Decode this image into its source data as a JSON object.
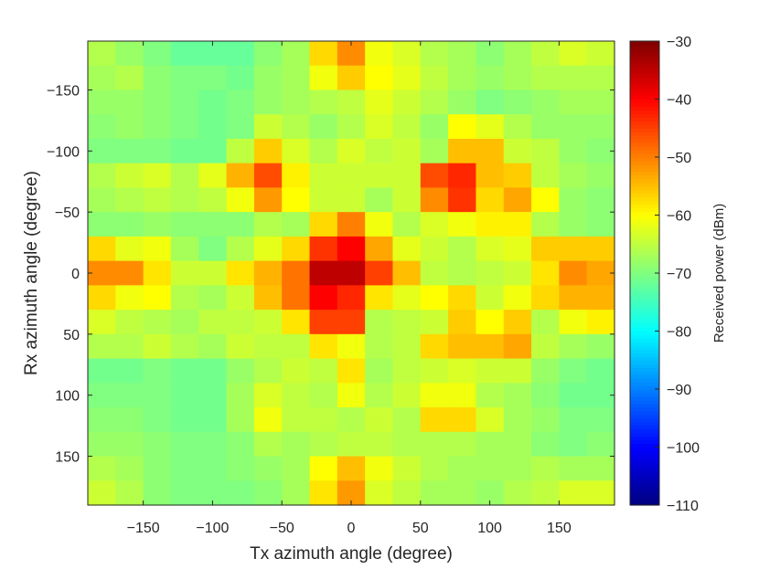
{
  "chart_data": {
    "type": "heatmap",
    "xlabel": "Tx azimuth angle (degree)",
    "ylabel": "Rx azimuth angle (degree)",
    "colorbar_label": "Received power (dBm)",
    "colormap": "jet",
    "clim": [
      -110,
      -30
    ],
    "xlim": [
      -190,
      190
    ],
    "ylim": [
      -190,
      190
    ],
    "y_direction": "reversed",
    "cell_size_deg": 20,
    "x_centers": [
      -180,
      -160,
      -140,
      -120,
      -100,
      -80,
      -60,
      -40,
      -20,
      0,
      20,
      40,
      60,
      80,
      100,
      120,
      140,
      160,
      180
    ],
    "y_centers": [
      -180,
      -160,
      -140,
      -120,
      -100,
      -80,
      -60,
      -40,
      -20,
      0,
      20,
      40,
      60,
      80,
      100,
      120,
      140,
      160,
      180
    ],
    "xticks": [
      -150,
      -100,
      -50,
      0,
      50,
      100,
      150
    ],
    "yticks": [
      -150,
      -100,
      -50,
      0,
      50,
      100,
      150
    ],
    "colorbar_ticks": [
      -30,
      -40,
      -50,
      -60,
      -70,
      -80,
      -90,
      -100,
      -110
    ],
    "values": [
      [
        -66,
        -68,
        -70,
        -72,
        -72,
        -72,
        -69,
        -67,
        -57,
        -51,
        -61,
        -63,
        -66,
        -67,
        -69,
        -67,
        -65,
        -63,
        -64
      ],
      [
        -67,
        -66,
        -69,
        -70,
        -70,
        -71,
        -68,
        -67,
        -61,
        -56,
        -60,
        -62,
        -65,
        -67,
        -68,
        -67,
        -66,
        -66,
        -66
      ],
      [
        -68,
        -68,
        -69,
        -70,
        -71,
        -70,
        -68,
        -67,
        -66,
        -65,
        -62,
        -64,
        -66,
        -68,
        -70,
        -69,
        -68,
        -67,
        -67
      ],
      [
        -69,
        -68,
        -69,
        -70,
        -71,
        -70,
        -64,
        -66,
        -68,
        -66,
        -63,
        -65,
        -68,
        -60,
        -62,
        -66,
        -68,
        -68,
        -68
      ],
      [
        -70,
        -70,
        -70,
        -71,
        -71,
        -65,
        -56,
        -63,
        -66,
        -63,
        -65,
        -64,
        -67,
        -55,
        -55,
        -64,
        -65,
        -68,
        -69
      ],
      [
        -66,
        -64,
        -63,
        -66,
        -62,
        -54,
        -46,
        -59,
        -64,
        -64,
        -64,
        -64,
        -46,
        -43,
        -55,
        -56,
        -65,
        -67,
        -68
      ],
      [
        -67,
        -66,
        -65,
        -66,
        -65,
        -61,
        -52,
        -60,
        -64,
        -64,
        -67,
        -64,
        -51,
        -44,
        -57,
        -53,
        -60,
        -68,
        -69
      ],
      [
        -69,
        -69,
        -68,
        -69,
        -69,
        -69,
        -66,
        -67,
        -57,
        -50,
        -61,
        -66,
        -63,
        -61,
        -59,
        -59,
        -66,
        -68,
        -69
      ],
      [
        -57,
        -62,
        -61,
        -67,
        -70,
        -66,
        -62,
        -57,
        -44,
        -40,
        -53,
        -62,
        -64,
        -66,
        -63,
        -62,
        -56,
        -56,
        -56
      ],
      [
        -51,
        -51,
        -58,
        -64,
        -64,
        -58,
        -54,
        -49,
        -35,
        -35,
        -45,
        -55,
        -65,
        -66,
        -65,
        -64,
        -58,
        -51,
        -53
      ],
      [
        -57,
        -61,
        -60,
        -66,
        -67,
        -64,
        -55,
        -49,
        -40,
        -43,
        -58,
        -62,
        -60,
        -57,
        -64,
        -61,
        -57,
        -54,
        -54
      ],
      [
        -63,
        -65,
        -66,
        -67,
        -65,
        -65,
        -64,
        -58,
        -45,
        -45,
        -66,
        -65,
        -64,
        -56,
        -60,
        -56,
        -66,
        -61,
        -59
      ],
      [
        -66,
        -66,
        -64,
        -66,
        -67,
        -64,
        -65,
        -65,
        -58,
        -61,
        -66,
        -65,
        -57,
        -55,
        -55,
        -53,
        -65,
        -67,
        -68
      ],
      [
        -71,
        -71,
        -70,
        -71,
        -71,
        -68,
        -66,
        -64,
        -65,
        -58,
        -67,
        -65,
        -64,
        -63,
        -64,
        -64,
        -68,
        -70,
        -71
      ],
      [
        -70,
        -70,
        -70,
        -71,
        -71,
        -67,
        -63,
        -65,
        -66,
        -61,
        -66,
        -64,
        -61,
        -61,
        -66,
        -67,
        -69,
        -71,
        -71
      ],
      [
        -69,
        -69,
        -70,
        -71,
        -71,
        -67,
        -61,
        -65,
        -65,
        -66,
        -64,
        -66,
        -57,
        -57,
        -63,
        -67,
        -68,
        -70,
        -70
      ],
      [
        -68,
        -68,
        -69,
        -70,
        -70,
        -69,
        -66,
        -67,
        -66,
        -65,
        -65,
        -66,
        -66,
        -66,
        -67,
        -67,
        -69,
        -70,
        -69
      ],
      [
        -66,
        -67,
        -69,
        -70,
        -70,
        -69,
        -68,
        -67,
        -60,
        -55,
        -61,
        -64,
        -66,
        -67,
        -67,
        -67,
        -66,
        -67,
        -67
      ],
      [
        -64,
        -66,
        -69,
        -70,
        -70,
        -70,
        -69,
        -67,
        -58,
        -52,
        -63,
        -65,
        -67,
        -67,
        -68,
        -66,
        -65,
        -63,
        -63
      ]
    ]
  }
}
